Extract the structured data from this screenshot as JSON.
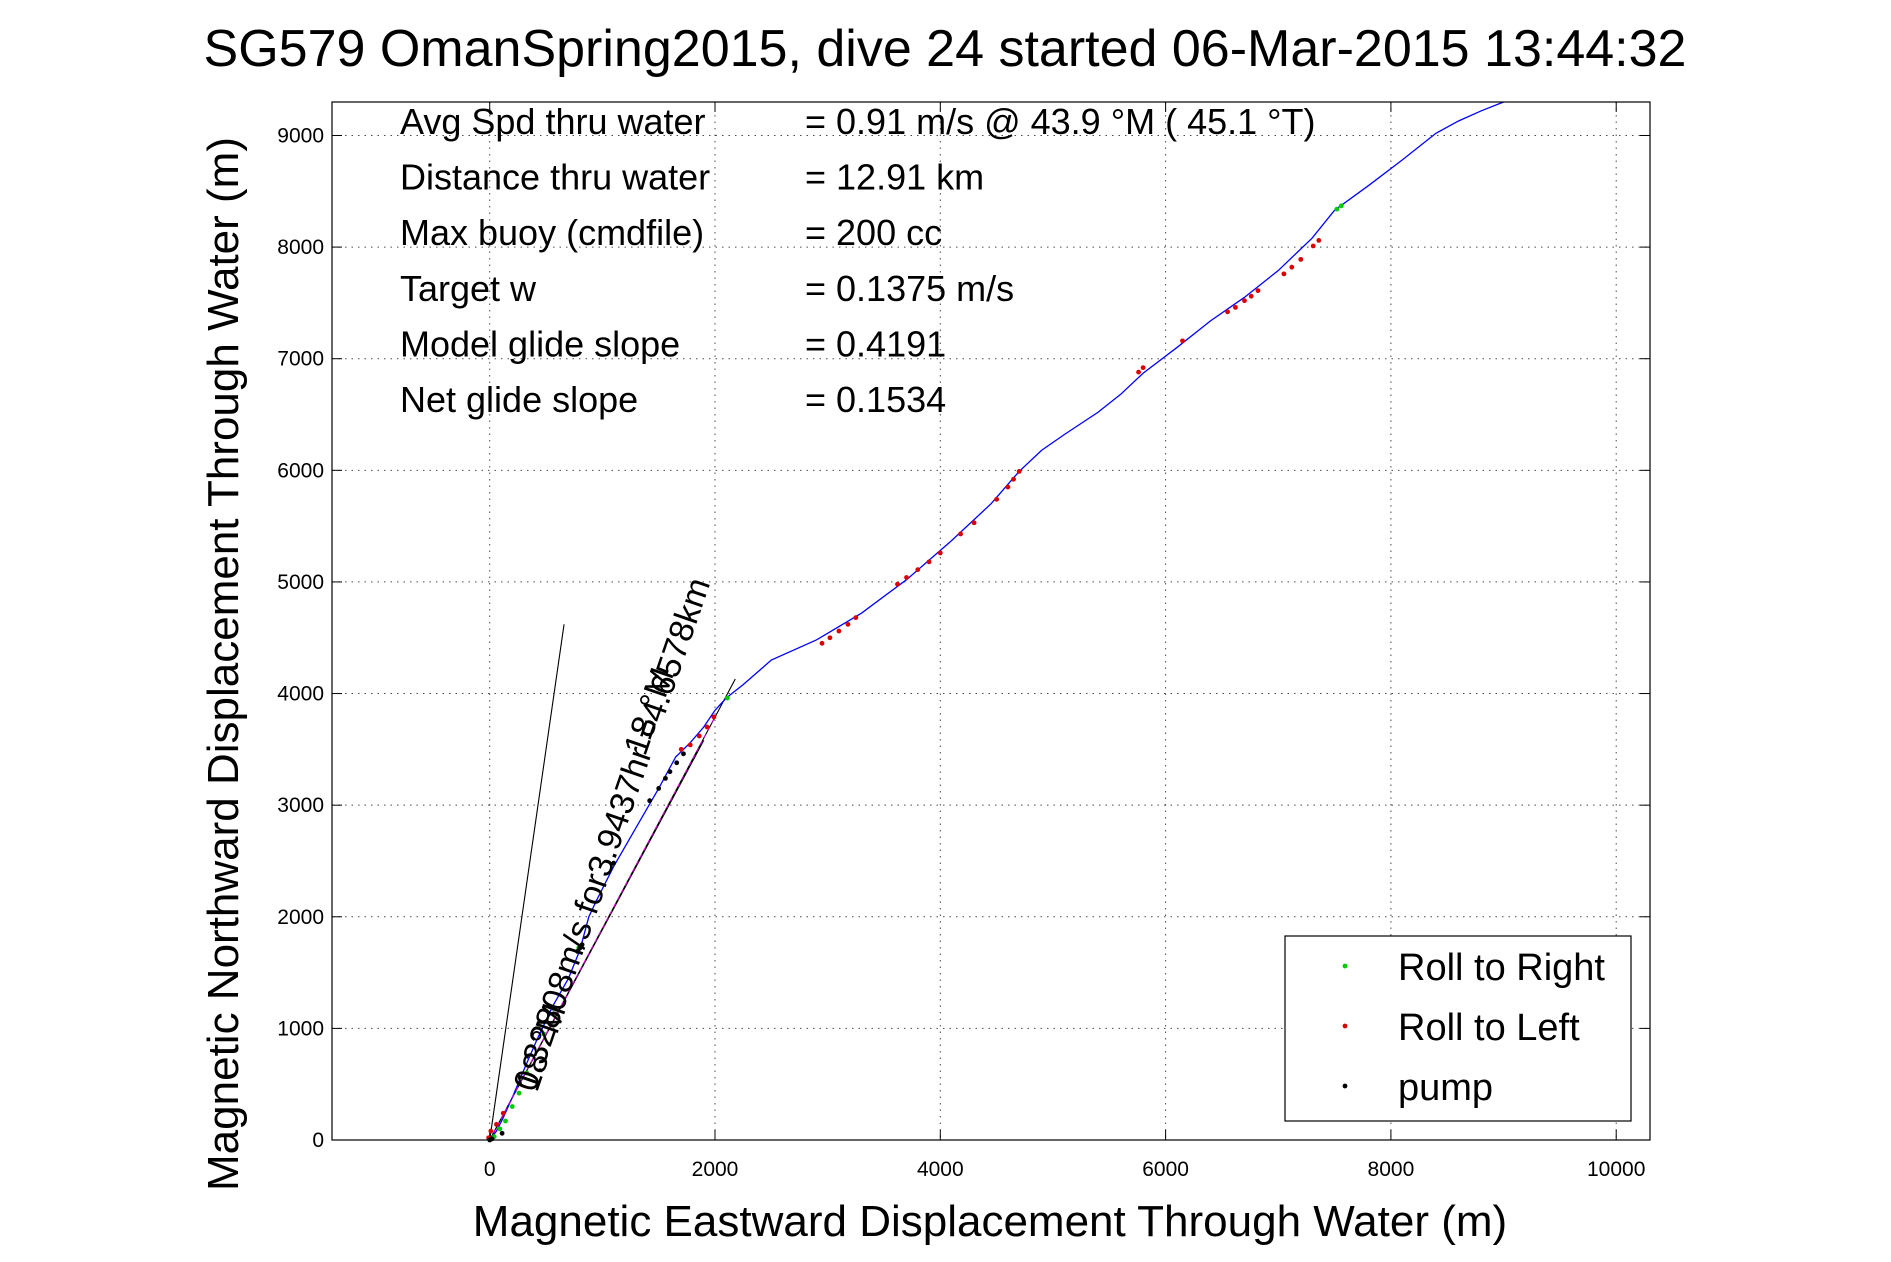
{
  "chart_data": {
    "type": "scatter",
    "title": "SG579 OmanSpring2015, dive 24 started 06-Mar-2015 13:44:32",
    "xlabel": "Magnetic Eastward Displacement Through Water (m)",
    "ylabel": "Magnetic Northward Displacement Through Water (m)",
    "xlim": [
      -1400,
      10300
    ],
    "ylim": [
      0,
      9300
    ],
    "xticks": [
      0,
      2000,
      4000,
      6000,
      8000,
      10000
    ],
    "yticks": [
      0,
      1000,
      2000,
      3000,
      4000,
      5000,
      6000,
      7000,
      8000,
      9000
    ],
    "grid": true,
    "legend_position": "bottom-right",
    "stats": [
      {
        "label": "Avg Spd thru water",
        "value": "=  0.91 m/s @  43.9 °M ( 45.1 °T)"
      },
      {
        "label": "Distance thru water",
        "value": "= 12.91 km"
      },
      {
        "label": "Max buoy (cmdfile)",
        "value": "= 200 cc"
      },
      {
        "label": "Target w",
        "value": "= 0.1375 m/s"
      },
      {
        "label": "Model glide slope",
        "value": "= 0.4191"
      },
      {
        "label": "Net glide slope",
        "value": "= 0.1534"
      }
    ],
    "series": [
      {
        "name": "Roll to Right",
        "color": "#00cc00",
        "marker": "dot",
        "x": [
          40,
          90,
          140,
          200,
          260,
          330,
          480,
          560,
          790,
          2110,
          7520,
          7560
        ],
        "y": [
          30,
          100,
          170,
          300,
          420,
          600,
          950,
          1180,
          1720,
          3960,
          8340,
          8370
        ]
      },
      {
        "name": "Roll to Left",
        "color": "#dd0000",
        "marker": "dot",
        "x": [
          -10,
          10,
          60,
          120,
          1700,
          1780,
          1860,
          1930,
          1990,
          2950,
          3020,
          3100,
          3180,
          3250,
          3620,
          3700,
          3800,
          3900,
          4000,
          4180,
          4300,
          4500,
          4600,
          4650,
          4700,
          5760,
          5800,
          6150,
          6550,
          6620,
          6700,
          6760,
          6820,
          7050,
          7120,
          7200,
          7310,
          7360
        ],
        "y": [
          20,
          80,
          140,
          240,
          3500,
          3540,
          3620,
          3700,
          3790,
          4450,
          4500,
          4560,
          4620,
          4680,
          4980,
          5040,
          5110,
          5180,
          5260,
          5430,
          5530,
          5740,
          5850,
          5920,
          5990,
          6880,
          6920,
          7160,
          7420,
          7460,
          7520,
          7560,
          7610,
          7760,
          7820,
          7890,
          8010,
          8060
        ]
      },
      {
        "name": "pump",
        "color": "#000000",
        "marker": "dot",
        "x": [
          0,
          20,
          110,
          780,
          800,
          820,
          1100,
          1420,
          1500,
          1560,
          1600,
          1660,
          1720
        ],
        "y": [
          0,
          10,
          60,
          1690,
          1720,
          1750,
          2480,
          3040,
          3150,
          3240,
          3300,
          3380,
          3460
        ]
      }
    ],
    "track": {
      "name": "track",
      "color": "#0000ff",
      "x": [
        0,
        60,
        120,
        200,
        300,
        420,
        560,
        700,
        800,
        880,
        950,
        1100,
        1300,
        1500,
        1650,
        1780,
        1900,
        2000,
        2100,
        2250,
        2500,
        2900,
        3300,
        3700,
        4100,
        4450,
        4700,
        4900,
        5100,
        5400,
        5600,
        5800,
        6100,
        6400,
        6700,
        7000,
        7300,
        7500,
        7800,
        8100,
        8400,
        8600,
        8800,
        9000
      ],
      "y": [
        0,
        80,
        200,
        380,
        620,
        900,
        1200,
        1450,
        1700,
        2000,
        2150,
        2450,
        2800,
        3150,
        3430,
        3560,
        3700,
        3850,
        3960,
        4080,
        4300,
        4480,
        4720,
        5020,
        5370,
        5700,
        5990,
        6180,
        6320,
        6520,
        6680,
        6870,
        7100,
        7340,
        7550,
        7790,
        8080,
        8330,
        8550,
        8780,
        9020,
        9130,
        9220,
        9300
      ]
    },
    "annotations": [
      {
        "text": "0.32808m/s for3.9437hr =4.6578km",
        "x": 400,
        "y": 420,
        "angle": -71,
        "color": "#000000"
      },
      {
        "text": "18 °M",
        "x": 1380,
        "y": 3430,
        "angle": -71,
        "color": "#000000"
      },
      {
        "text": "18 °M",
        "x": 420,
        "y": 420,
        "angle": -71,
        "color": "#000000"
      }
    ],
    "current_line": {
      "color": "#cc00cc",
      "x": [
        0,
        2000
      ],
      "y": [
        0,
        3790
      ]
    },
    "heading_lines": [
      {
        "x": [
          0,
          660
        ],
        "y": [
          0,
          4620
        ],
        "color": "#000000"
      },
      {
        "x": [
          0,
          2180
        ],
        "y": [
          0,
          4130
        ],
        "color": "#000000"
      },
      {
        "x": [
          0,
          1900
        ],
        "y": [
          0,
          3580
        ],
        "color": "#000000"
      }
    ]
  }
}
